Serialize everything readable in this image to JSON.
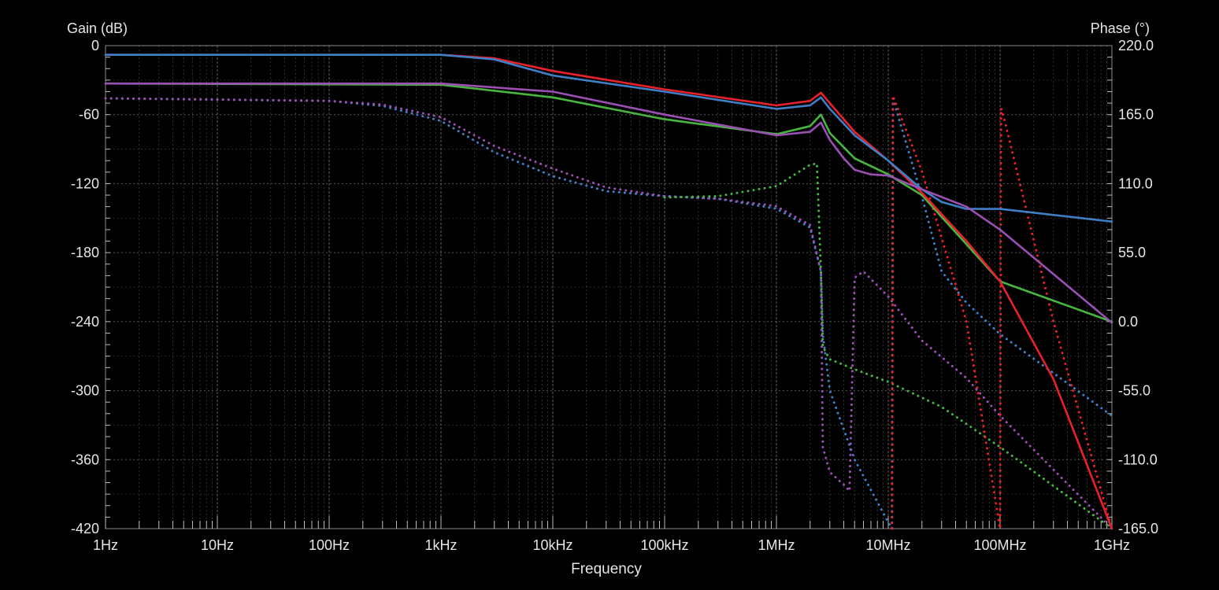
{
  "chart_data": {
    "type": "line",
    "title": "",
    "xlabel": "Frequency",
    "ylabel_left": "Gain (dB)",
    "ylabel_right": "Phase (°)",
    "x_scale": "log",
    "xlim": [
      1,
      1000000000
    ],
    "ylim_left": [
      -420,
      0
    ],
    "ylim_right": [
      -165,
      220
    ],
    "x_ticks": [
      1,
      10,
      100,
      1000,
      10000,
      100000,
      1000000,
      10000000,
      100000000,
      1000000000
    ],
    "x_tick_labels": [
      "1Hz",
      "10Hz",
      "100Hz",
      "1kHz",
      "10kHz",
      "100kHz",
      "1MHz",
      "10MHz",
      "100MHz",
      "1GHz"
    ],
    "y_left_ticks": [
      0,
      -60,
      -120,
      -180,
      -240,
      -300,
      -360,
      -420
    ],
    "y_left_tick_labels": [
      "0",
      "-60",
      "-120",
      "-180",
      "-240",
      "-300",
      "-360",
      "-420"
    ],
    "y_right_ticks": [
      220,
      165,
      110,
      55,
      0,
      -55,
      -110,
      -165
    ],
    "y_right_tick_labels": [
      "220.0",
      "165.0",
      "110.0",
      "55.0",
      "0.0",
      "-55.0",
      "-110.0",
      "-165.0"
    ],
    "grid": true,
    "colors": {
      "red": "#e8212b",
      "blue": "#3f7fc6",
      "green": "#47b53f",
      "purple": "#9a4fb3",
      "background": "#000000",
      "grid": "#6a6a6a"
    },
    "series": [
      {
        "color": "green",
        "axis": "gain",
        "style": "solid",
        "x": [
          1,
          1000,
          10000,
          100000,
          1000000,
          2000000,
          2500000,
          3000000,
          5000000,
          10000000,
          20000000,
          100000000,
          1000000000
        ],
        "y": [
          -33,
          -34,
          -45,
          -64,
          -77,
          -70,
          -60,
          -76,
          -98,
          -112,
          -130,
          -205,
          -240
        ]
      },
      {
        "color": "red",
        "axis": "gain",
        "style": "solid",
        "x": [
          1,
          1000,
          3000,
          10000,
          100000,
          1000000,
          2000000,
          2500000,
          3000000,
          5000000,
          10000000,
          20000000,
          50000000,
          100000000,
          300000000,
          1000000000
        ],
        "y": [
          -8,
          -8,
          -11,
          -22,
          -38,
          -52,
          -48,
          -41,
          -50,
          -75,
          -100,
          -128,
          -170,
          -205,
          -290,
          -420
        ]
      },
      {
        "color": "blue",
        "axis": "gain",
        "style": "solid",
        "x": [
          1,
          1000,
          3000,
          10000,
          100000,
          1000000,
          2000000,
          2500000,
          3000000,
          5000000,
          10000000,
          20000000,
          30000000,
          50000000,
          100000000,
          1000000000
        ],
        "y": [
          -8,
          -8,
          -12,
          -26,
          -40,
          -55,
          -52,
          -45,
          -55,
          -78,
          -100,
          -125,
          -136,
          -142,
          -142,
          -153
        ]
      },
      {
        "color": "purple",
        "axis": "gain",
        "style": "solid",
        "x": [
          1,
          1000,
          10000,
          100000,
          1000000,
          2000000,
          2500000,
          3000000,
          4000000,
          5000000,
          7000000,
          10000000,
          20000000,
          50000000,
          100000000,
          1000000000
        ],
        "y": [
          -33,
          -33,
          -40,
          -60,
          -78,
          -75,
          -67,
          -82,
          -98,
          -108,
          -112,
          -113,
          -125,
          -140,
          -160,
          -241
        ]
      },
      {
        "color": "blue",
        "axis": "phase",
        "style": "dotted",
        "x": [
          1,
          100,
          300,
          1000,
          3000,
          10000,
          30000,
          100000,
          300000,
          1000000,
          2000000,
          2500000,
          2600000,
          3000000,
          5000000,
          10000000,
          10800000,
          11000000,
          20000000,
          30000000,
          50000000,
          100000000,
          1000000000
        ],
        "y": [
          178,
          176,
          172,
          160,
          135,
          116,
          104,
          100,
          98,
          90,
          75,
          40,
          -10,
          -55,
          -110,
          -160,
          -165,
          178,
          100,
          40,
          15,
          -10,
          -75
        ]
      },
      {
        "color": "purple",
        "axis": "phase",
        "style": "dotted",
        "x": [
          1,
          100,
          300,
          1000,
          3000,
          10000,
          30000,
          100000,
          300000,
          1000000,
          2000000,
          2500000,
          2600000,
          3000000,
          4000000,
          4500000,
          5000000,
          6000000,
          10000000,
          20000000,
          50000000,
          100000000,
          1000000000
        ],
        "y": [
          178,
          176,
          173,
          163,
          140,
          122,
          107,
          100,
          98,
          92,
          77,
          40,
          -100,
          -120,
          -130,
          -135,
          35,
          40,
          20,
          -15,
          -45,
          -75,
          -165
        ]
      },
      {
        "color": "green",
        "axis": "phase",
        "style": "dotted",
        "x": [
          100000,
          300000,
          1000000,
          2000000,
          2300000,
          2500000,
          2600000,
          3000000,
          5000000,
          10000000,
          30000000,
          100000000,
          1000000000
        ],
        "y": [
          99,
          100,
          108,
          125,
          126,
          40,
          -20,
          -30,
          -38,
          -48,
          -68,
          -100,
          -165
        ]
      },
      {
        "color": "red",
        "axis": "phase",
        "style": "dotted",
        "x": [
          10800000,
          11000000,
          20000000,
          50000000,
          100000000,
          102000000,
          110000000,
          300000000,
          1000000000
        ],
        "y": [
          -165,
          180,
          120,
          0,
          -165,
          170,
          160,
          0,
          -165
        ]
      }
    ]
  }
}
